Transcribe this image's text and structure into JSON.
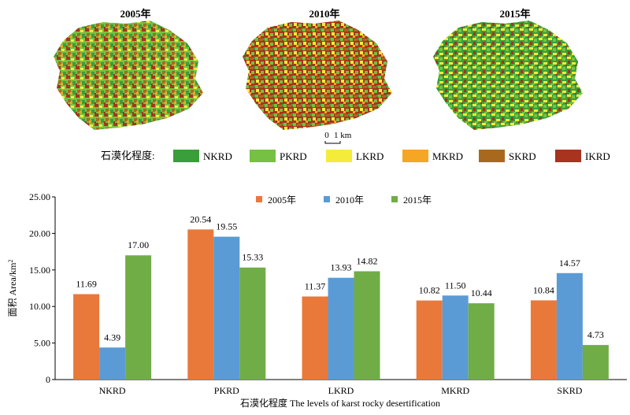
{
  "maps": {
    "panels": [
      {
        "title": "2005年"
      },
      {
        "title": "2010年"
      },
      {
        "title": "2015年"
      }
    ],
    "scale_bar": {
      "zero": "0",
      "label": "1 km"
    }
  },
  "legend": {
    "title": "石漠化程度:",
    "items": [
      {
        "label": "NKRD",
        "color": "#3a9e3a"
      },
      {
        "label": "PKRD",
        "color": "#76c043"
      },
      {
        "label": "LKRD",
        "color": "#f3ec3a"
      },
      {
        "label": "MKRD",
        "color": "#f5a623"
      },
      {
        "label": "SKRD",
        "color": "#a8691f"
      },
      {
        "label": "IKRD",
        "color": "#a8331e"
      }
    ]
  },
  "chart_data": {
    "type": "bar",
    "categories": [
      "NKRD",
      "PKRD",
      "LKRD",
      "MKRD",
      "SKRD"
    ],
    "series": [
      {
        "name": "2005年",
        "color": "#e8793a",
        "values": [
          11.69,
          20.54,
          11.37,
          10.82,
          10.84
        ]
      },
      {
        "name": "2010年",
        "color": "#5b9bd5",
        "values": [
          4.39,
          19.55,
          13.93,
          11.5,
          14.57
        ]
      },
      {
        "name": "2015年",
        "color": "#70ad47",
        "values": [
          17.0,
          15.33,
          14.82,
          10.44,
          4.73
        ]
      }
    ],
    "value_labels": [
      [
        "11.69",
        "20.54",
        "11.37",
        "10.82",
        "10.84"
      ],
      [
        "4.39",
        "19.55",
        "13.93",
        "11.50",
        "14.57"
      ],
      [
        "17.00",
        "15.33",
        "14.82",
        "10.44",
        "4.73"
      ]
    ],
    "yticks": [
      "0",
      "5.00",
      "10.00",
      "15.00",
      "20.00",
      "25.00"
    ],
    "ylim": [
      0,
      25
    ],
    "ylabel": "面积 Area/km",
    "ylabel_sup": "2",
    "xlabel": "石漠化程度 The levels of karst rocky desertification",
    "legend_position": "top-center",
    "grid": false
  }
}
